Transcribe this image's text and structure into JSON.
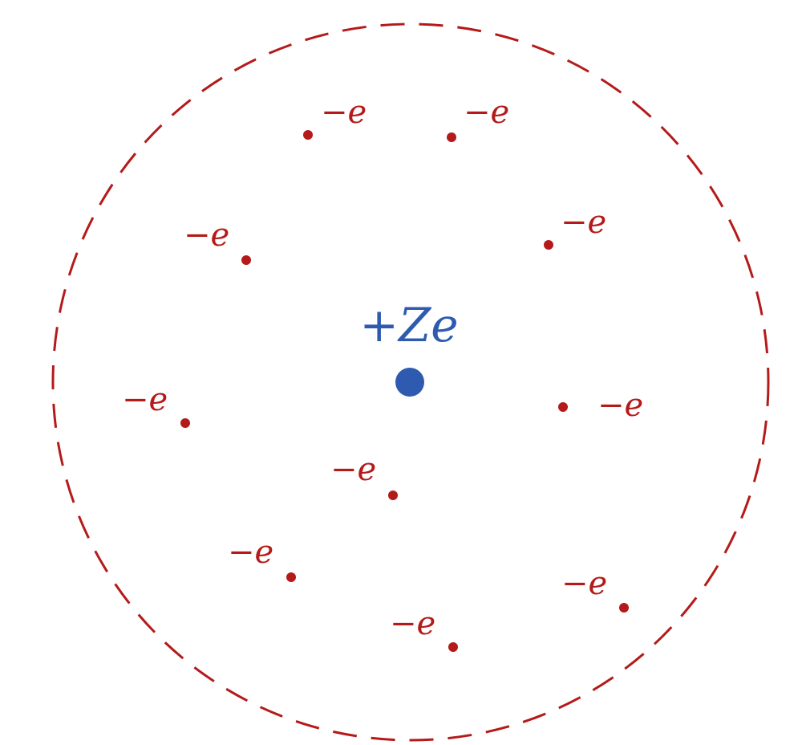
{
  "colors": {
    "nucleus": "#2e5bb0",
    "electron": "#b51a1a",
    "boundary": "#b51a1a",
    "background": "#ffffff"
  },
  "nucleus": {
    "label": "+Ze"
  },
  "boundary": {
    "style": "dashed"
  },
  "electrons": [
    {
      "label": "−e"
    },
    {
      "label": "−e"
    },
    {
      "label": "−e"
    },
    {
      "label": "−e"
    },
    {
      "label": "−e"
    },
    {
      "label": "−e"
    },
    {
      "label": "−e"
    },
    {
      "label": "−e"
    },
    {
      "label": "−e"
    },
    {
      "label": "−e"
    }
  ]
}
